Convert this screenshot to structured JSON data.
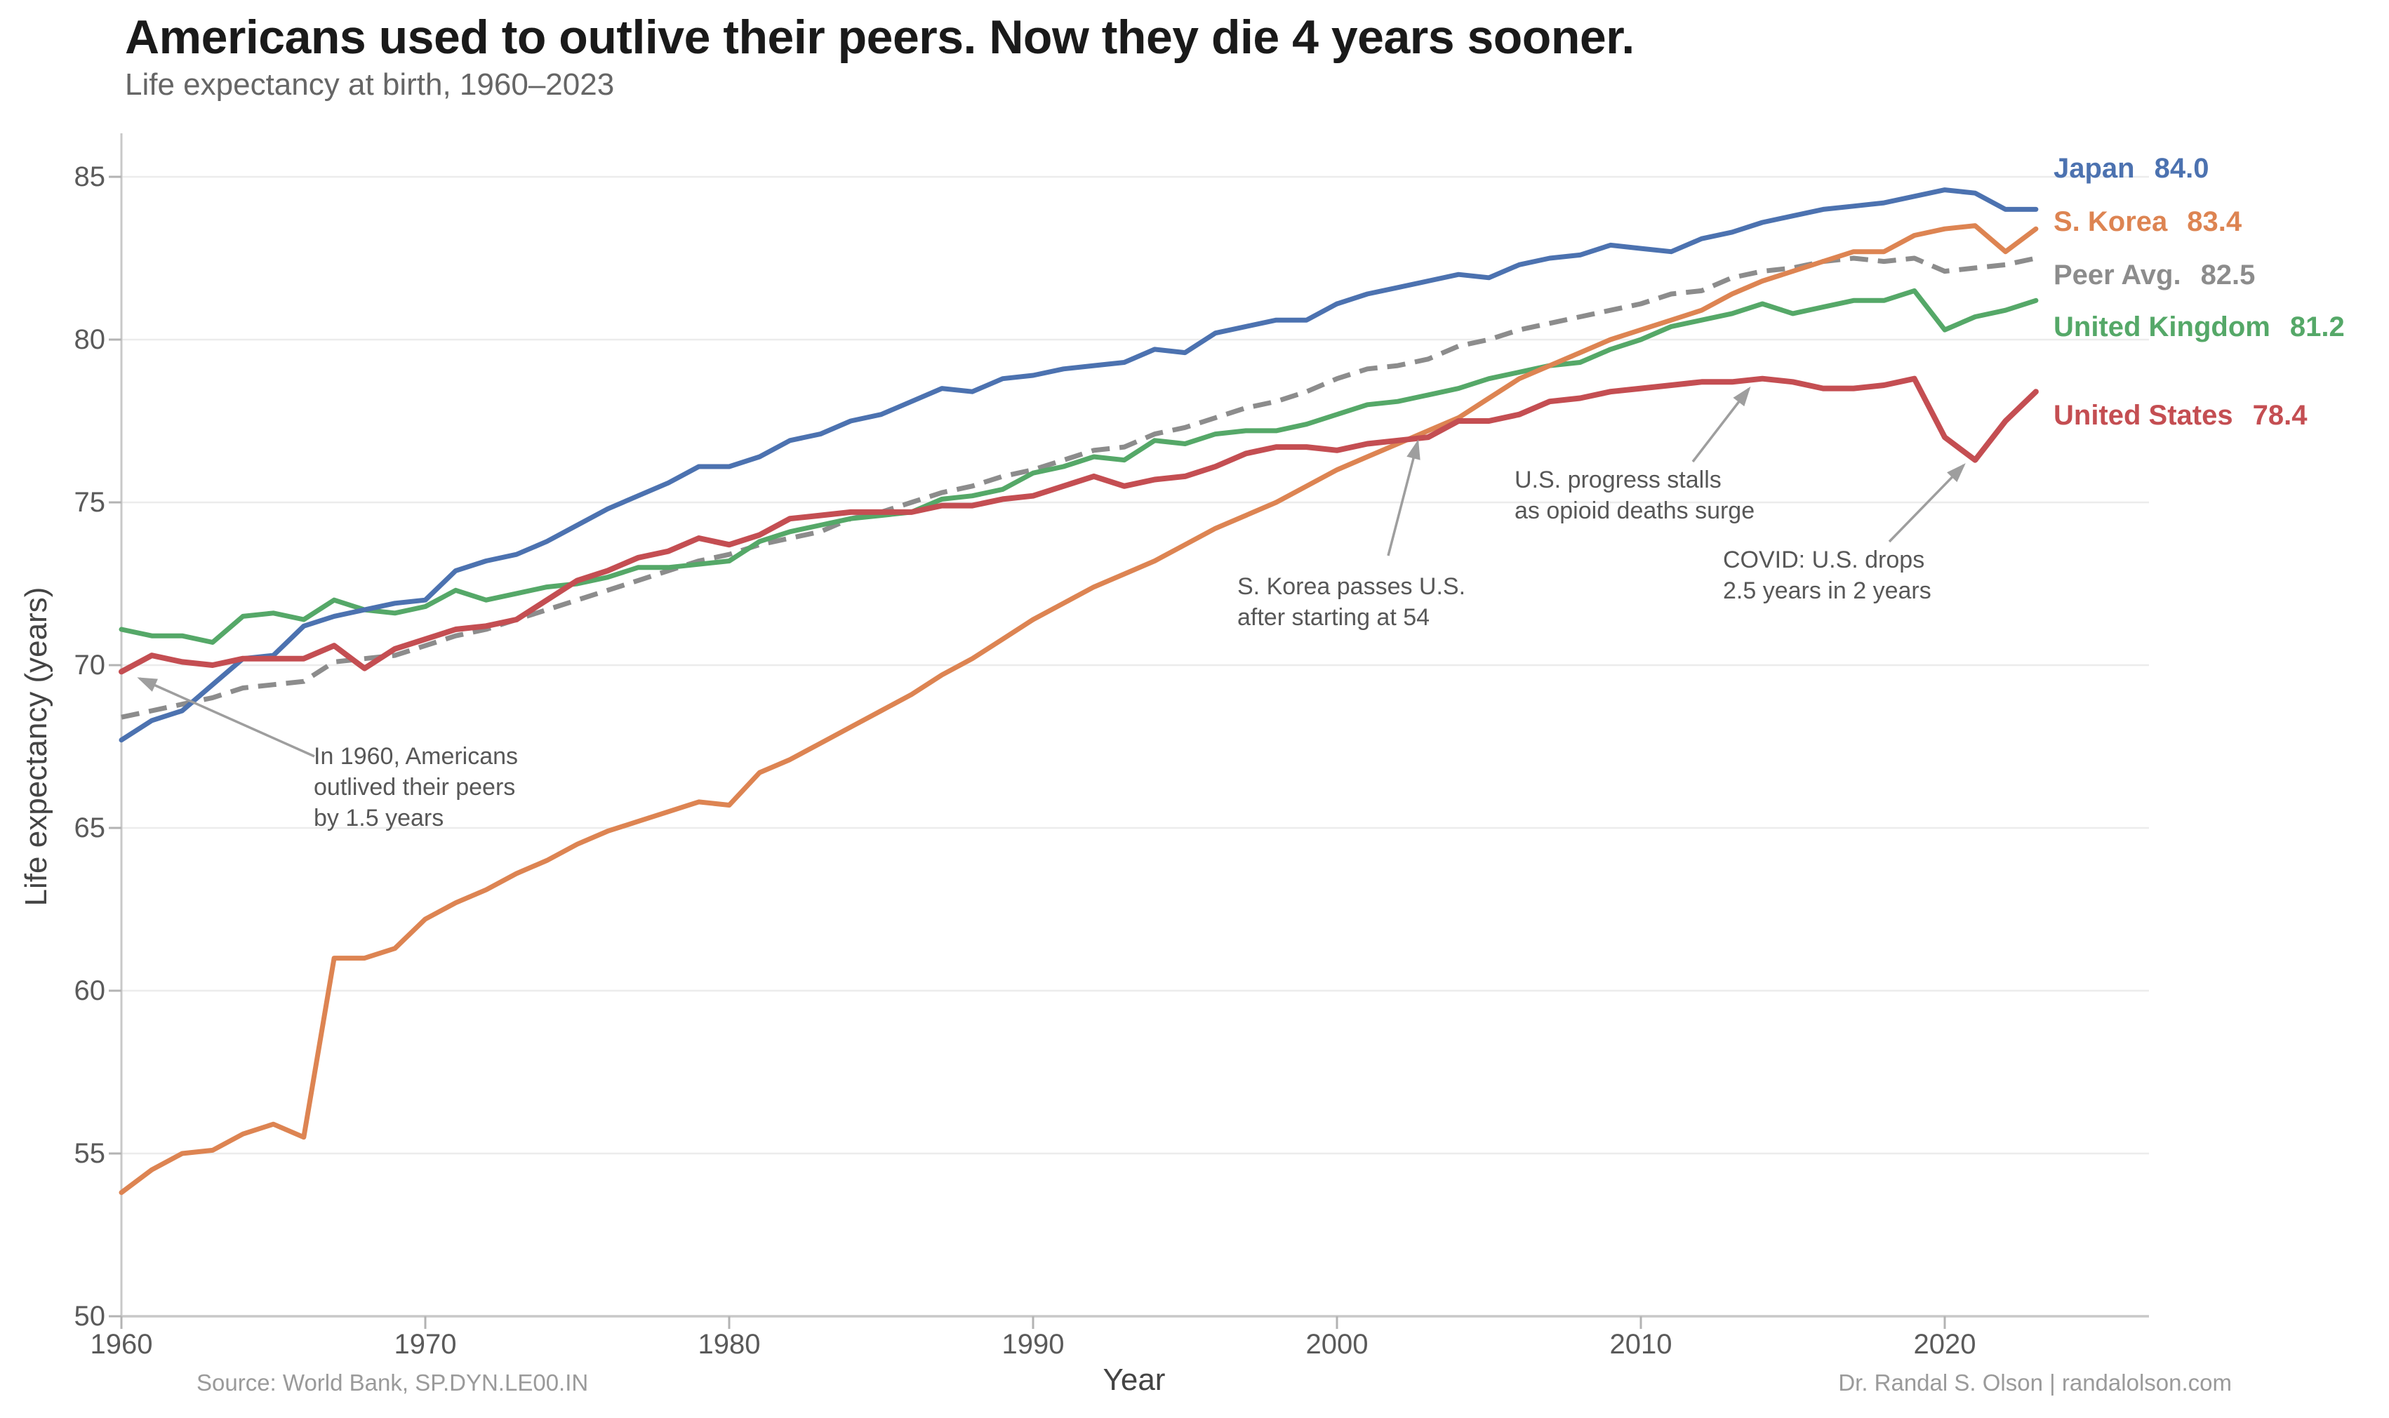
{
  "header": {
    "title": "Americans used to outlive their peers. Now they die 4 years sooner.",
    "subtitle": "Life expectancy at birth, 1960–2023"
  },
  "chart_data": {
    "type": "line",
    "title": "Americans used to outlive their peers. Now they die 4 years sooner.",
    "subtitle": "Life expectancy at birth, 1960–2023",
    "xlabel": "Year",
    "ylabel": "Life expectancy (years)",
    "xlim": [
      1960,
      2023
    ],
    "ylim": [
      50,
      85
    ],
    "grid": "horizontal",
    "legend_position": "right-outside",
    "x_ticks": [
      1960,
      1970,
      1980,
      1990,
      2000,
      2010,
      2020
    ],
    "x_tick_labels": [
      "1960",
      "1970",
      "1980",
      "1990",
      "2000",
      "2010",
      "2020"
    ],
    "y_ticks": [
      50,
      55,
      60,
      65,
      70,
      75,
      80,
      85
    ],
    "y_tick_labels": [
      "50",
      "55",
      "60",
      "65",
      "70",
      "75",
      "80",
      "85"
    ],
    "x": [
      1960,
      1961,
      1962,
      1963,
      1964,
      1965,
      1966,
      1967,
      1968,
      1969,
      1970,
      1971,
      1972,
      1973,
      1974,
      1975,
      1976,
      1977,
      1978,
      1979,
      1980,
      1981,
      1982,
      1983,
      1984,
      1985,
      1986,
      1987,
      1988,
      1989,
      1990,
      1991,
      1992,
      1993,
      1994,
      1995,
      1996,
      1997,
      1998,
      1999,
      2000,
      2001,
      2002,
      2003,
      2004,
      2005,
      2006,
      2007,
      2008,
      2009,
      2010,
      2011,
      2012,
      2013,
      2014,
      2015,
      2016,
      2017,
      2018,
      2019,
      2020,
      2021,
      2022,
      2023
    ],
    "series": [
      {
        "name": "Japan",
        "color": "#4C72B0",
        "style": "solid",
        "end_label": "84.0",
        "values": [
          67.7,
          68.3,
          68.6,
          69.4,
          70.2,
          70.3,
          71.2,
          71.5,
          71.7,
          71.9,
          72.0,
          72.9,
          73.2,
          73.4,
          73.8,
          74.3,
          74.8,
          75.2,
          75.6,
          76.1,
          76.1,
          76.4,
          76.9,
          77.1,
          77.5,
          77.7,
          78.1,
          78.5,
          78.4,
          78.8,
          78.9,
          79.1,
          79.2,
          79.3,
          79.7,
          79.6,
          80.2,
          80.4,
          80.6,
          80.6,
          81.1,
          81.4,
          81.6,
          81.8,
          82.0,
          81.9,
          82.3,
          82.5,
          82.6,
          82.9,
          82.8,
          82.7,
          83.1,
          83.3,
          83.6,
          83.8,
          84.0,
          84.1,
          84.2,
          84.4,
          84.6,
          84.5,
          84.0,
          84.0
        ]
      },
      {
        "name": "S. Korea",
        "color": "#DD8452",
        "style": "solid",
        "end_label": "83.4",
        "values": [
          53.8,
          54.5,
          55.0,
          55.1,
          55.6,
          55.9,
          55.5,
          61.0,
          61.0,
          61.3,
          62.2,
          62.7,
          63.1,
          63.6,
          64.0,
          64.5,
          64.9,
          65.2,
          65.5,
          65.8,
          65.7,
          66.7,
          67.1,
          67.6,
          68.1,
          68.6,
          69.1,
          69.7,
          70.2,
          70.8,
          71.4,
          71.9,
          72.4,
          72.8,
          73.2,
          73.7,
          74.2,
          74.6,
          75.0,
          75.5,
          76.0,
          76.4,
          76.8,
          77.2,
          77.6,
          78.2,
          78.8,
          79.2,
          79.6,
          80.0,
          80.3,
          80.6,
          80.9,
          81.4,
          81.8,
          82.1,
          82.4,
          82.7,
          82.7,
          83.2,
          83.4,
          83.5,
          82.7,
          83.4
        ]
      },
      {
        "name": "Peer Avg.",
        "color": "#8C8C8C",
        "style": "dashed",
        "end_label": "82.5",
        "values": [
          68.4,
          68.6,
          68.8,
          69.0,
          69.3,
          69.4,
          69.5,
          70.1,
          70.2,
          70.3,
          70.6,
          70.9,
          71.1,
          71.4,
          71.7,
          72.0,
          72.3,
          72.6,
          72.9,
          73.2,
          73.4,
          73.7,
          73.9,
          74.1,
          74.5,
          74.7,
          75.0,
          75.3,
          75.5,
          75.8,
          76.0,
          76.3,
          76.6,
          76.7,
          77.1,
          77.3,
          77.6,
          77.9,
          78.1,
          78.4,
          78.8,
          79.1,
          79.2,
          79.4,
          79.8,
          80.0,
          80.3,
          80.5,
          80.7,
          80.9,
          81.1,
          81.4,
          81.5,
          81.9,
          82.1,
          82.2,
          82.4,
          82.5,
          82.4,
          82.5,
          82.1,
          82.2,
          82.3,
          82.5
        ]
      },
      {
        "name": "United Kingdom",
        "color": "#55A868",
        "style": "solid",
        "end_label": "81.2",
        "values": [
          71.1,
          70.9,
          70.9,
          70.7,
          71.5,
          71.6,
          71.4,
          72.0,
          71.7,
          71.6,
          71.8,
          72.3,
          72.0,
          72.2,
          72.4,
          72.5,
          72.7,
          73.0,
          73.0,
          73.1,
          73.2,
          73.8,
          74.1,
          74.3,
          74.5,
          74.6,
          74.7,
          75.1,
          75.2,
          75.4,
          75.9,
          76.1,
          76.4,
          76.3,
          76.9,
          76.8,
          77.1,
          77.2,
          77.2,
          77.4,
          77.7,
          78.0,
          78.1,
          78.3,
          78.5,
          78.8,
          79.0,
          79.2,
          79.3,
          79.7,
          80.0,
          80.4,
          80.6,
          80.8,
          81.1,
          80.8,
          81.0,
          81.2,
          81.2,
          81.5,
          80.3,
          80.7,
          80.9,
          81.2
        ]
      },
      {
        "name": "United States",
        "color": "#C44E52",
        "style": "solid",
        "end_label": "78.4",
        "values": [
          69.8,
          70.3,
          70.1,
          70.0,
          70.2,
          70.2,
          70.2,
          70.6,
          69.9,
          70.5,
          70.8,
          71.1,
          71.2,
          71.4,
          72.0,
          72.6,
          72.9,
          73.3,
          73.5,
          73.9,
          73.7,
          74.0,
          74.5,
          74.6,
          74.7,
          74.7,
          74.7,
          74.9,
          74.9,
          75.1,
          75.2,
          75.5,
          75.8,
          75.5,
          75.7,
          75.8,
          76.1,
          76.5,
          76.7,
          76.7,
          76.6,
          76.8,
          76.9,
          77.0,
          77.5,
          77.5,
          77.7,
          78.1,
          78.2,
          78.4,
          78.5,
          78.6,
          78.7,
          78.7,
          78.8,
          78.7,
          78.5,
          78.5,
          78.6,
          78.8,
          77.0,
          76.3,
          77.5,
          78.4
        ]
      }
    ],
    "annotations": [
      {
        "id": "note-1960",
        "lines": [
          "In 1960, Americans",
          "outlived their peers",
          "by 1.5 years"
        ],
        "arrow_to": {
          "year": 1960.5,
          "value": 69.6
        }
      },
      {
        "id": "korea-passes",
        "lines": [
          "S. Korea passes U.S.",
          "after starting at 54"
        ],
        "arrow_to": {
          "year": 2003,
          "value": 77.2
        }
      },
      {
        "id": "opioid-stall",
        "lines": [
          "U.S. progress stalls",
          "as opioid deaths surge"
        ],
        "arrow_to": {
          "year": 2014,
          "value": 78.8
        }
      },
      {
        "id": "covid-drop",
        "lines": [
          "COVID: U.S. drops",
          "2.5 years in 2 years"
        ],
        "arrow_to": {
          "year": 2021,
          "value": 76.4
        }
      }
    ]
  },
  "legend": {
    "items": [
      {
        "label": "Japan",
        "value": "84.0",
        "color": "#4C72B0"
      },
      {
        "label": "S. Korea",
        "value": "83.4",
        "color": "#DD8452"
      },
      {
        "label": "Peer Avg.",
        "value": "82.5",
        "color": "#8C8C8C"
      },
      {
        "label": "United Kingdom",
        "value": "81.2",
        "color": "#55A868"
      },
      {
        "label": "United States",
        "value": "78.4",
        "color": "#C44E52"
      }
    ]
  },
  "footer": {
    "source": "Source: World Bank, SP.DYN.LE00.IN",
    "credit": "Dr. Randal S. Olson  |  randalolson.com"
  },
  "colors": {
    "japan": "#4C72B0",
    "s_korea": "#DD8452",
    "peer_avg": "#8C8C8C",
    "united_kingdom": "#55A868",
    "united_states": "#C44E52",
    "grid": "#ececec",
    "spine": "#c8c8c8",
    "arrow": "#9e9e9e"
  }
}
